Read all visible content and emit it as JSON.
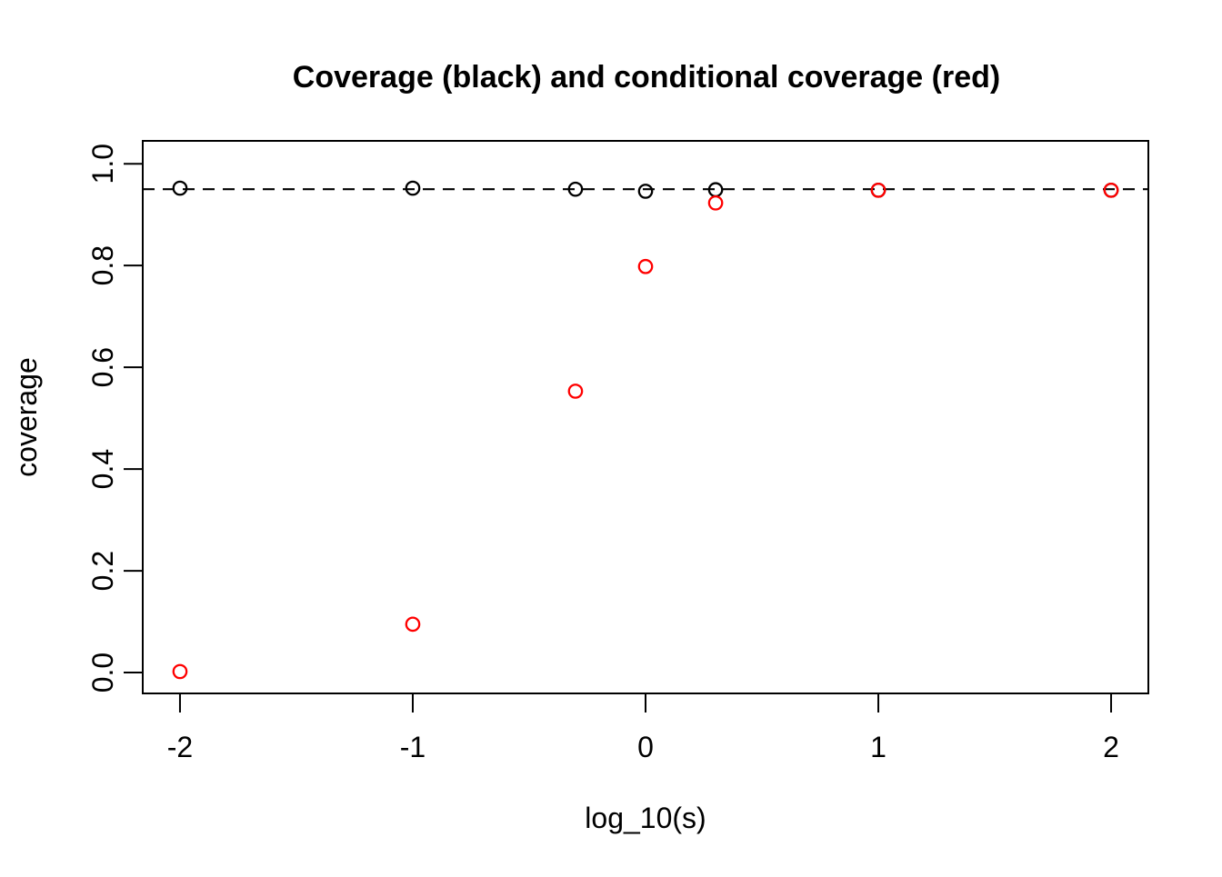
{
  "figure": {
    "background": "#ffffff",
    "foreground": "#000000"
  },
  "chart_data": {
    "type": "scatter",
    "title": "Coverage (black) and conditional coverage (red)",
    "xlabel": "log_10(s)",
    "ylabel": "coverage",
    "xlim": [
      -2.16,
      2.16
    ],
    "ylim": [
      -0.041,
      1.045
    ],
    "grid": false,
    "legend": "none (colors explained in title)",
    "x_ticks": {
      "values": [
        -2,
        -1,
        0,
        1,
        2
      ],
      "labels": [
        "-2",
        "-1",
        "0",
        "1",
        "2"
      ]
    },
    "y_ticks": {
      "values": [
        0.0,
        0.2,
        0.4,
        0.6,
        0.8,
        1.0
      ],
      "labels": [
        "0.0",
        "0.2",
        "0.4",
        "0.6",
        "0.8",
        "1.0"
      ]
    },
    "reference_line": {
      "y": 0.95,
      "style": "dashed",
      "color": "#000000"
    },
    "marker": "open-circle",
    "series": [
      {
        "name": "coverage",
        "color": "#000000",
        "x": [
          -2,
          -1,
          -0.301,
          0,
          0.301,
          1,
          2
        ],
        "y": [
          0.952,
          0.952,
          0.95,
          0.946,
          0.949,
          0.948,
          0.948
        ]
      },
      {
        "name": "conditional coverage",
        "color": "#ff0000",
        "x": [
          -2,
          -1,
          -0.301,
          0,
          0.301,
          1,
          2
        ],
        "y": [
          0.002,
          0.095,
          0.553,
          0.798,
          0.923,
          0.948,
          0.948
        ]
      }
    ]
  }
}
